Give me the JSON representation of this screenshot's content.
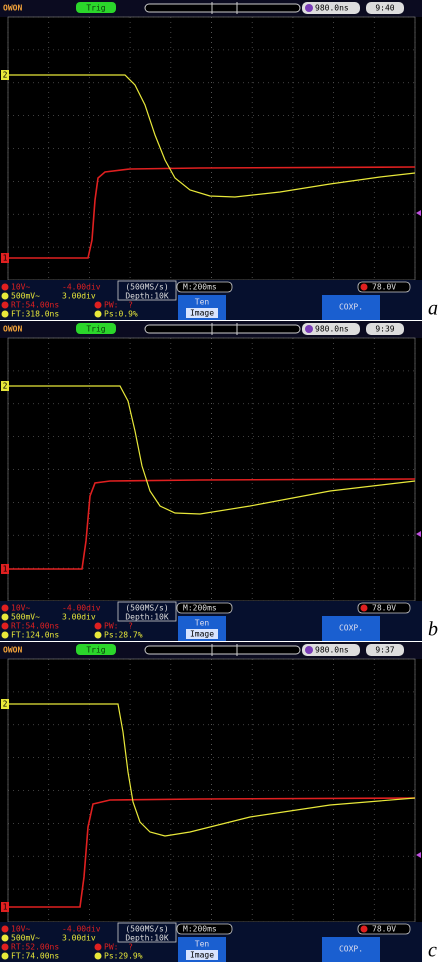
{
  "panels": [
    {
      "label": "a",
      "brand": "OWON",
      "trigger": "Trig",
      "time_offset": "980.0ns",
      "clock": "9:40",
      "ch1_marker": "1",
      "ch2_marker": "2",
      "ch1_scale": "10V~",
      "ch1_offset": "-4.00div",
      "ch2_scale": "500mV~",
      "ch2_offset": "3.00div",
      "sample_rate": "(500MS/s)",
      "depth": "Depth:10K",
      "timebase": "M:200ms",
      "trigger_level": "78.0V",
      "measure_1a": "RT:54.00ns",
      "measure_1b": "PW:  ?",
      "measure_2a": "FT:318.0ns",
      "measure_2b": "Ps:0.9%",
      "menu_1": "Ten",
      "menu_2": "Image",
      "menu_3": "COXP."
    },
    {
      "label": "b",
      "brand": "OWON",
      "trigger": "Trig",
      "time_offset": "980.0ns",
      "clock": "9:39",
      "ch1_marker": "1",
      "ch2_marker": "2",
      "ch1_scale": "10V~",
      "ch1_offset": "-4.00div",
      "ch2_scale": "500mV~",
      "ch2_offset": "3.00div",
      "sample_rate": "(500MS/s)",
      "depth": "Depth:10K",
      "timebase": "M:200ms",
      "trigger_level": "78.0V",
      "measure_1a": "RT:54.00ns",
      "measure_1b": "PW:  ?",
      "measure_2a": "FT:124.0ns",
      "measure_2b": "Ps:28.7%",
      "menu_1": "Ten",
      "menu_2": "Image",
      "menu_3": "COXP."
    },
    {
      "label": "c",
      "brand": "OWON",
      "trigger": "Trig",
      "time_offset": "980.0ns",
      "clock": "9:37",
      "ch1_marker": "1",
      "ch2_marker": "2",
      "ch1_scale": "10V~",
      "ch1_offset": "-4.00div",
      "ch2_scale": "500mV~",
      "ch2_offset": "3.00div",
      "sample_rate": "(500MS/s)",
      "depth": "Depth:10K",
      "timebase": "M:200ms",
      "trigger_level": "78.0V",
      "measure_1a": "RT:52.00ns",
      "measure_1b": "PW:  ?",
      "measure_2a": "FT:74.00ns",
      "measure_2b": "Ps:29.9%",
      "menu_1": "Ten",
      "menu_2": "Image",
      "menu_3": "COXP."
    }
  ]
}
